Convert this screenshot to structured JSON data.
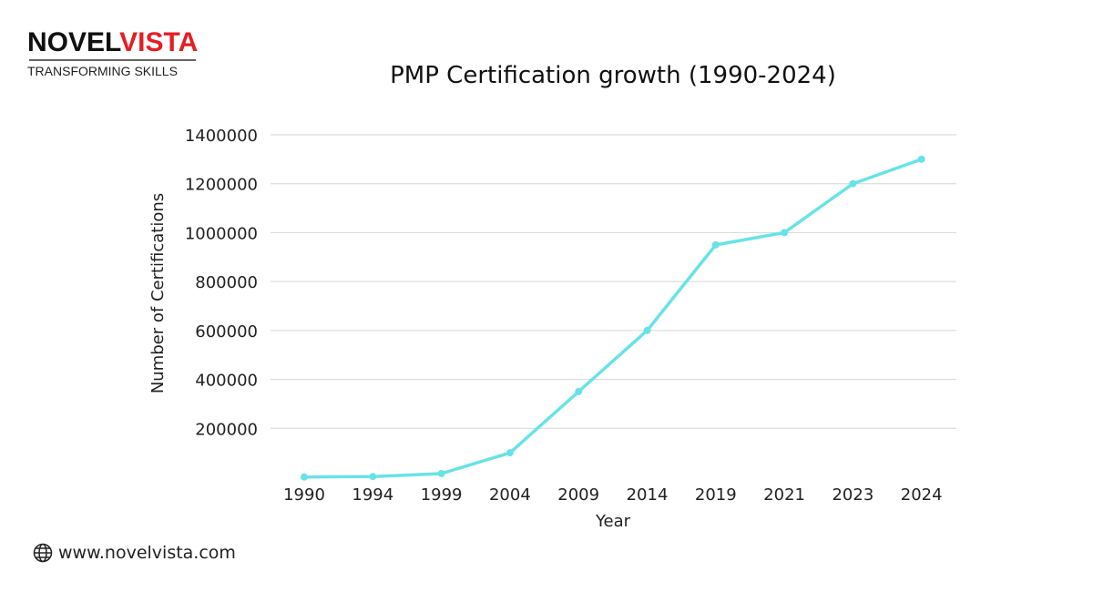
{
  "logo": {
    "part1": "NOVEL",
    "part2": "VISTA",
    "tagline": "TRANSFORMING SKILLS"
  },
  "footer": {
    "icon": "globe-icon",
    "url": "www.novelvista.com"
  },
  "chart_data": {
    "type": "line",
    "title": "PMP Certification growth (1990-2024)",
    "xlabel": "Year",
    "ylabel": "Number of Certifications",
    "categories": [
      "1990",
      "1994",
      "1999",
      "2004",
      "2009",
      "2014",
      "2019",
      "2021",
      "2023",
      "2024"
    ],
    "values": [
      1000,
      3000,
      15000,
      100000,
      350000,
      600000,
      950000,
      1000000,
      1200000,
      1300000
    ],
    "ylim": [
      0,
      1400000
    ],
    "yticks": [
      200000,
      400000,
      600000,
      800000,
      1000000,
      1200000,
      1400000
    ],
    "grid": true,
    "line_color": "#67e3e8"
  }
}
